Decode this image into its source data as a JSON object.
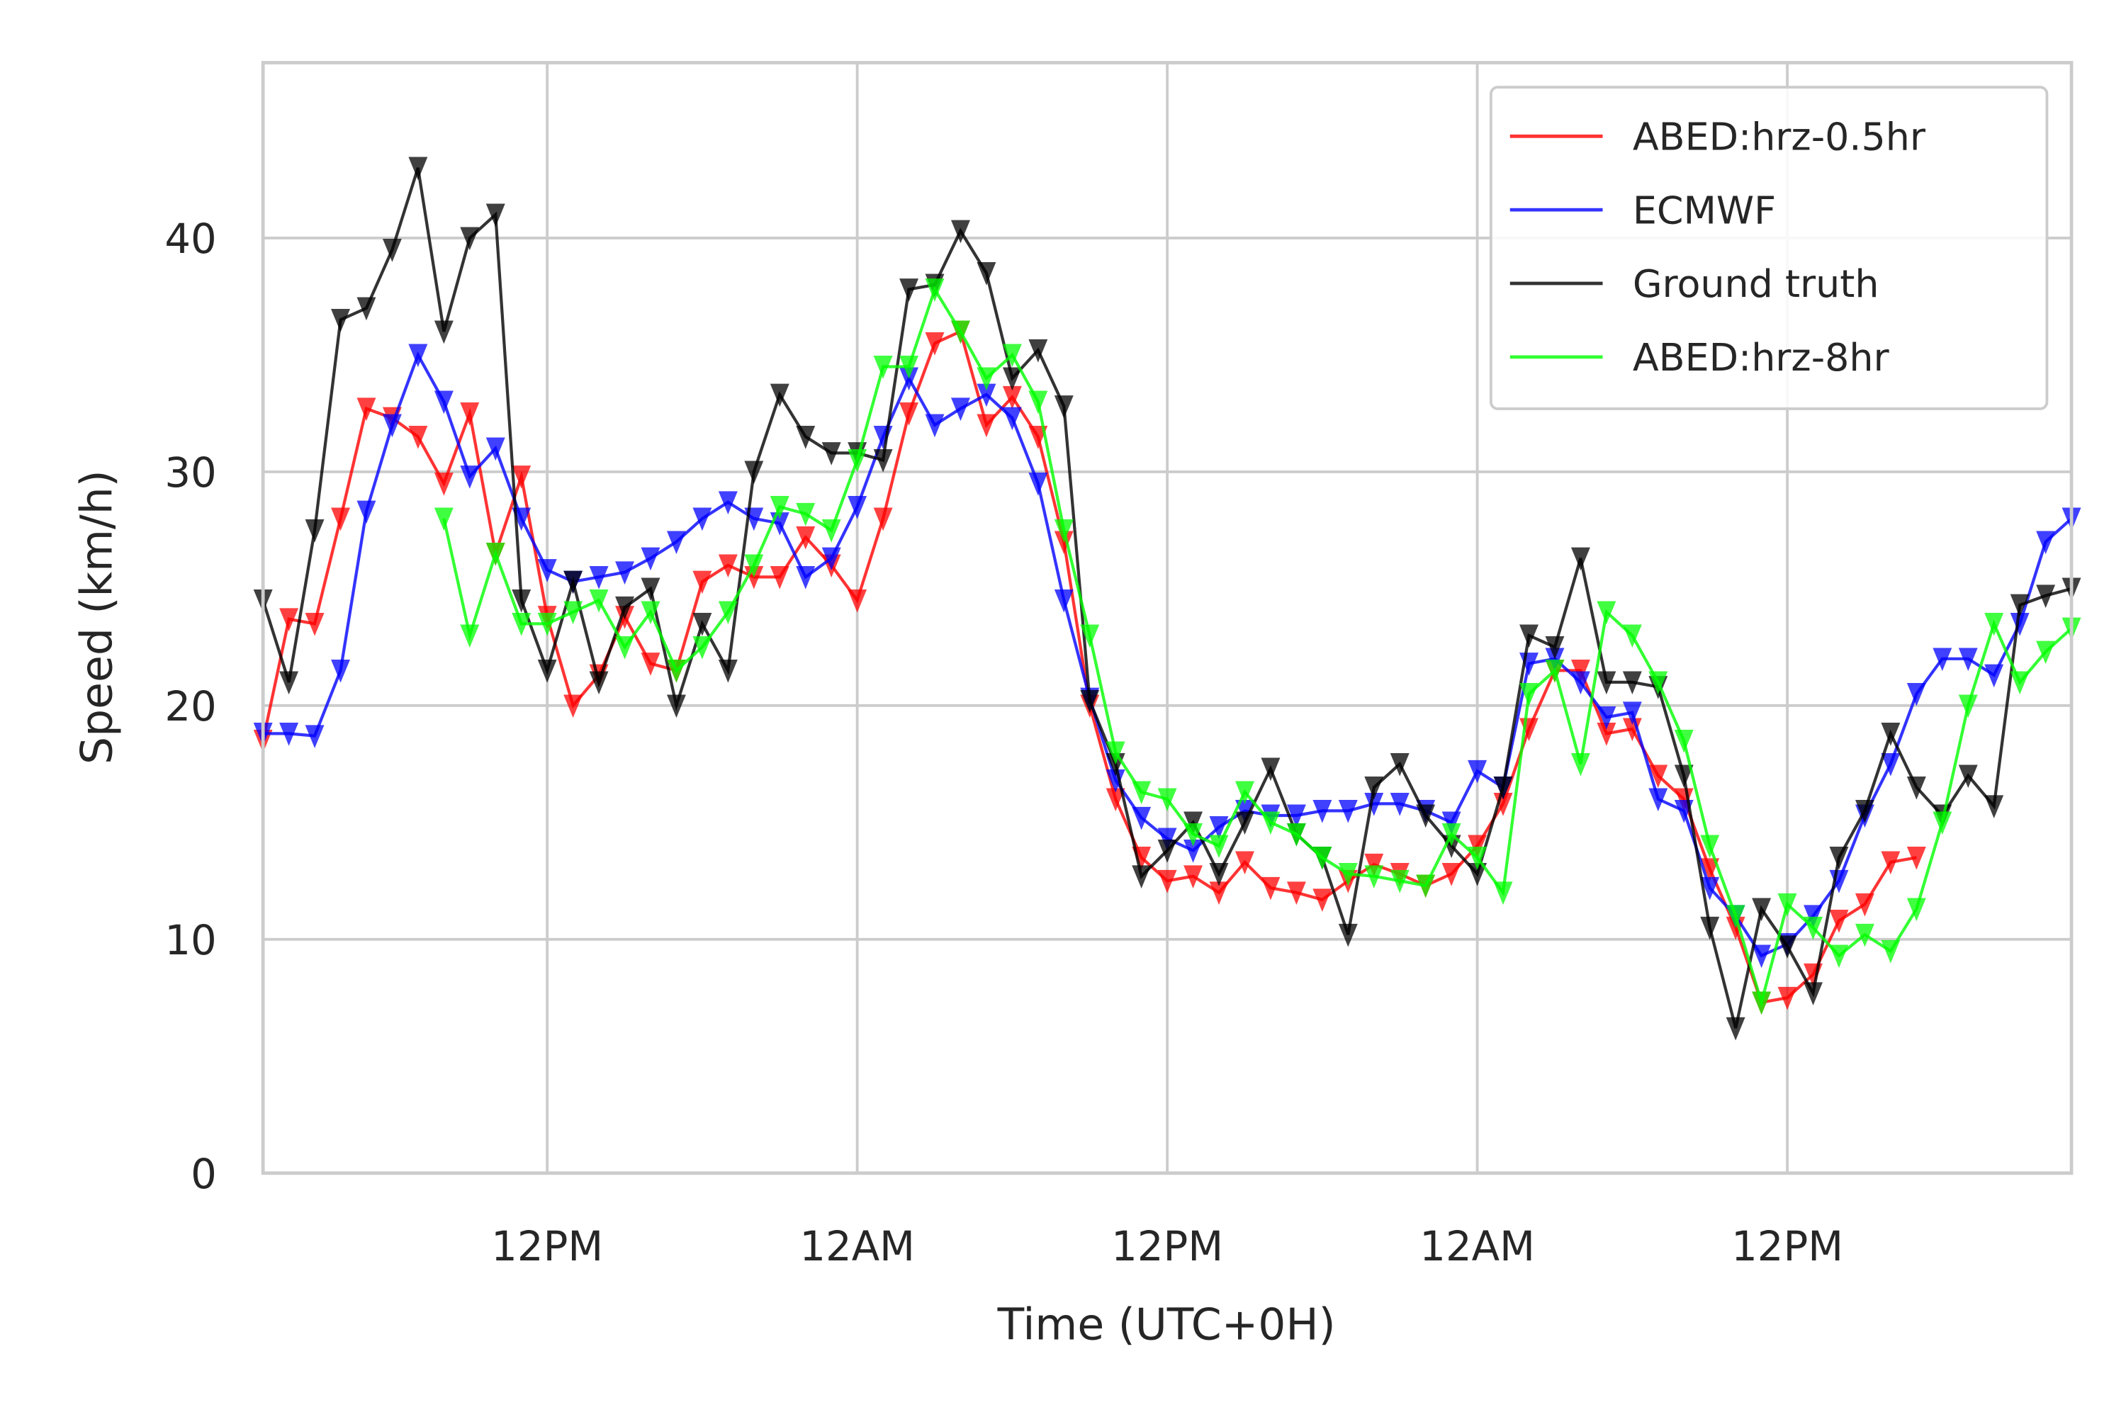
{
  "chart_data": {
    "type": "line",
    "xlabel": "Time (UTC+0H)",
    "ylabel": "Speed (km/h)",
    "x": [
      -11,
      -10,
      -9,
      -8,
      -7,
      -6,
      -5,
      -4,
      -3,
      -2,
      -1,
      0,
      1,
      2,
      3,
      4,
      5,
      6,
      7,
      8,
      9,
      10,
      11,
      12,
      13,
      14,
      15,
      16,
      17,
      18,
      19,
      20,
      21,
      22,
      23,
      24,
      25,
      26,
      27,
      28,
      29,
      30,
      31,
      32,
      33,
      34,
      35,
      36,
      37,
      38,
      39,
      40,
      41,
      42,
      43,
      44,
      45,
      46,
      47,
      48,
      49,
      50,
      51,
      52,
      53,
      54,
      55,
      56,
      57,
      58,
      59
    ],
    "xlim": [
      -11,
      59
    ],
    "xticks": [
      {
        "value": 0,
        "label": "12PM"
      },
      {
        "value": 12,
        "label": "12AM"
      },
      {
        "value": 24,
        "label": "12PM"
      },
      {
        "value": 36,
        "label": "12AM"
      },
      {
        "value": 48,
        "label": "12PM"
      }
    ],
    "ylim": [
      0,
      47.5
    ],
    "yticks": [
      0,
      10,
      20,
      30,
      40
    ],
    "grid": true,
    "legend": "upper right",
    "series": [
      {
        "name": "ABED:hrz-0.5hr",
        "color": "#ff0000",
        "values": [
          18.5,
          23.7,
          23.5,
          28,
          32.7,
          32.3,
          31.5,
          29.5,
          32.5,
          26.5,
          29.8,
          23.8,
          20,
          21.3,
          23.8,
          21.8,
          21.5,
          25.3,
          26,
          25.5,
          25.5,
          27.2,
          26,
          24.5,
          28,
          32.5,
          35.5,
          36,
          32,
          33.2,
          31.5,
          27,
          20,
          16,
          13.5,
          12.5,
          12.7,
          12,
          13.3,
          12.2,
          12,
          11.7,
          12.5,
          13.2,
          12.8,
          12.3,
          12.8,
          14,
          15.8,
          19,
          21.5,
          21.5,
          18.8,
          19,
          17,
          16,
          13,
          10.5,
          7.3,
          7.5,
          8.5,
          10.8,
          11.5,
          13.3,
          13.5,
          null,
          null,
          null,
          null,
          null,
          null
        ]
      },
      {
        "name": "ECMWF",
        "color": "#0000ff",
        "values": [
          18.8,
          18.8,
          18.7,
          21.5,
          28.3,
          32,
          35,
          33,
          29.8,
          31,
          28,
          25.8,
          25.3,
          25.5,
          25.7,
          26.3,
          27,
          28,
          28.7,
          28,
          27.8,
          25.5,
          26.3,
          28.5,
          31.5,
          34,
          32,
          32.7,
          33.3,
          32.3,
          29.5,
          24.5,
          20.3,
          16.8,
          15.2,
          14.3,
          13.8,
          14.8,
          15.5,
          15.3,
          15.3,
          15.5,
          15.5,
          15.8,
          15.8,
          15.5,
          15,
          17.2,
          16.5,
          21.8,
          22,
          21,
          19.5,
          19.7,
          16,
          15.5,
          12.2,
          11,
          9.3,
          9.8,
          11,
          12.5,
          15.3,
          17.5,
          20.5,
          22,
          22,
          21.3,
          23.5,
          27,
          28
        ]
      },
      {
        "name": "Ground truth",
        "color": "#000000",
        "values": [
          24.5,
          21,
          27.5,
          36.5,
          37,
          39.5,
          43,
          36,
          40,
          41,
          24.5,
          21.5,
          25.3,
          21,
          24.2,
          25,
          20,
          23.5,
          21.5,
          30,
          33.3,
          31.5,
          30.8,
          30.8,
          30.5,
          37.8,
          38,
          40.3,
          38.5,
          34,
          35.2,
          32.8,
          20.2,
          17.5,
          12.7,
          13.8,
          15,
          12.8,
          15,
          17.3,
          14.5,
          13.5,
          10.2,
          16.5,
          17.5,
          15.3,
          14,
          12.8,
          16.5,
          23,
          22.5,
          26.3,
          21,
          21,
          20.8,
          17,
          10.5,
          6.2,
          11.3,
          9.7,
          7.7,
          13.5,
          15.5,
          18.8,
          16.5,
          15.3,
          17,
          15.7,
          24.3,
          24.7,
          25
        ]
      },
      {
        "name": "ABED:hrz-8hr",
        "color": "#00ff00",
        "values": [
          null,
          null,
          null,
          null,
          null,
          null,
          null,
          28,
          23,
          26.5,
          23.5,
          23.5,
          24,
          24.5,
          22.5,
          24,
          21.5,
          22.5,
          24,
          26,
          28.5,
          28.2,
          27.5,
          30.5,
          34.5,
          34.5,
          37.8,
          36,
          34,
          35,
          33,
          27.5,
          23,
          18,
          16.3,
          16,
          14.5,
          14,
          16.3,
          15,
          14.5,
          13.5,
          12.8,
          12.7,
          12.5,
          12.3,
          14.5,
          13.5,
          12,
          20.5,
          21.5,
          17.5,
          24,
          23,
          21,
          18.5,
          14,
          11,
          7.3,
          11.5,
          10.5,
          9.3,
          10.2,
          9.5,
          11.3,
          15,
          20,
          23.5,
          21,
          22.3,
          23.3
        ]
      }
    ]
  }
}
